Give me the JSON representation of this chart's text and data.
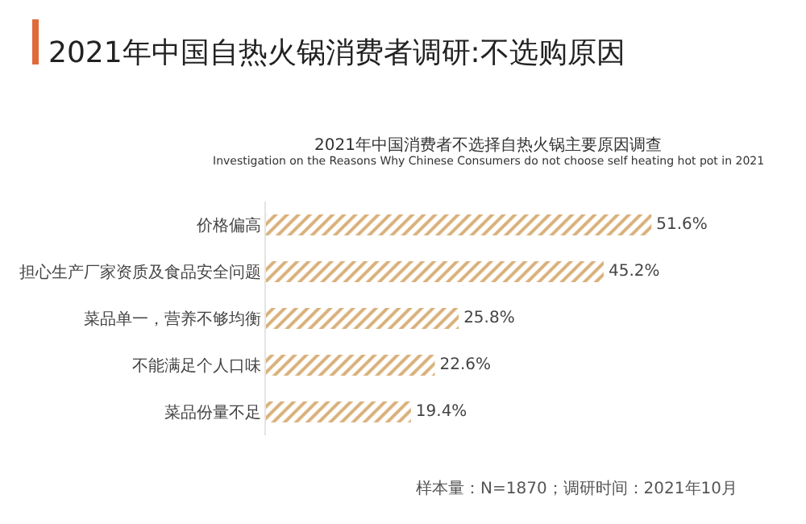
{
  "chart_data": {
    "type": "bar",
    "orientation": "horizontal",
    "title": "2021年中国自热火锅消费者调研:不选购原因",
    "subtitle": "2021年中国消费者不选择自热火锅主要原因调查\nInvestigation on the Reasons Why Chinese Consumers do not choose self heating hot pot in 2021",
    "categories": [
      "价格偏高",
      "担心生产厂家资质及食品安全问题",
      "菜品单一，营养不够均衡",
      "不能满足个人口味",
      "菜品份量不足"
    ],
    "values": [
      51.6,
      45.2,
      25.8,
      22.6,
      19.4
    ],
    "color": "#d9b07a",
    "value_labels": [
      "51.6%",
      "45.2%",
      "25.8%",
      "22.6%",
      "19.4%"
    ],
    "annotations": [
      "样本量：N=1870；调研时间：2021年10月"
    ],
    "data_labels": false
  }
}
